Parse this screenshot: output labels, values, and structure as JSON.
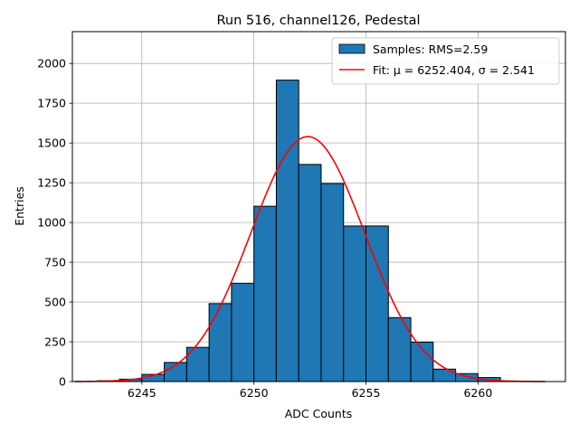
{
  "chart_data": {
    "type": "bar",
    "title": "Run 516, channel126, Pedestal",
    "xlabel": "ADC Counts",
    "ylabel": "Entries",
    "xlim": [
      6241.9,
      6263.9
    ],
    "ylim": [
      0,
      2200
    ],
    "grid": true,
    "legend_position": "top-right",
    "xticks": [
      6245,
      6250,
      6255,
      6260
    ],
    "yticks": [
      0,
      250,
      500,
      750,
      1000,
      1250,
      1500,
      1750,
      2000
    ],
    "bins": [
      {
        "left": 6243,
        "right": 6244,
        "count": 5
      },
      {
        "left": 6244,
        "right": 6245,
        "count": 15
      },
      {
        "left": 6245,
        "right": 6246,
        "count": 45
      },
      {
        "left": 6246,
        "right": 6247,
        "count": 120
      },
      {
        "left": 6247,
        "right": 6248,
        "count": 215
      },
      {
        "left": 6248,
        "right": 6249,
        "count": 490
      },
      {
        "left": 6249,
        "right": 6250,
        "count": 618
      },
      {
        "left": 6250,
        "right": 6251,
        "count": 1102
      },
      {
        "left": 6251,
        "right": 6252,
        "count": 1895
      },
      {
        "left": 6252,
        "right": 6253,
        "count": 1365
      },
      {
        "left": 6253,
        "right": 6254,
        "count": 1245
      },
      {
        "left": 6254,
        "right": 6255,
        "count": 978
      },
      {
        "left": 6255,
        "right": 6256,
        "count": 978
      },
      {
        "left": 6256,
        "right": 6257,
        "count": 402
      },
      {
        "left": 6257,
        "right": 6258,
        "count": 248
      },
      {
        "left": 6258,
        "right": 6259,
        "count": 78
      },
      {
        "left": 6259,
        "right": 6260,
        "count": 50
      },
      {
        "left": 6260,
        "right": 6261,
        "count": 25
      }
    ],
    "fit": {
      "mu": 6252.404,
      "sigma": 2.541,
      "amplitude": 1540,
      "x_range": [
        6242,
        6263
      ]
    },
    "series": [
      {
        "name": "Samples: RMS=2.59",
        "kind": "histogram",
        "color": "#1f77b4",
        "edge_color": "#000000"
      },
      {
        "name": "Fit: μ = 6252.404, σ = 2.541",
        "kind": "line",
        "color": "#ff0000"
      }
    ]
  }
}
